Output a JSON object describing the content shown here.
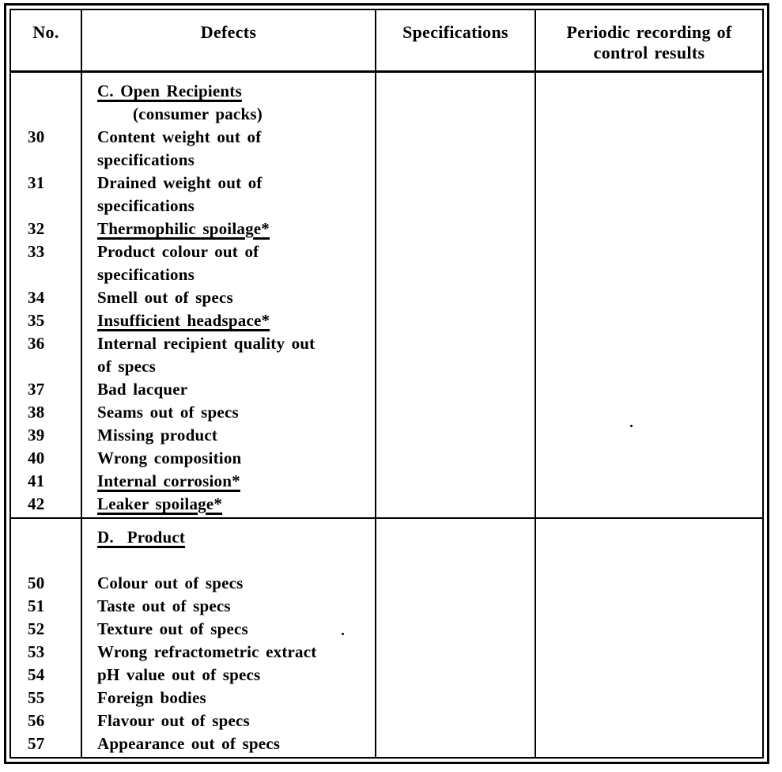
{
  "table": {
    "columns": {
      "no": "No.",
      "defects": "Defects",
      "specifications": "Specifications",
      "periodic": "Periodic recording of control results"
    },
    "sections": [
      {
        "id": "C",
        "lines": [
          {
            "no": "",
            "text": "C. Open Recipients",
            "underline": true
          },
          {
            "no": "",
            "text": "(consumer packs)",
            "indent": true
          },
          {
            "no": "30",
            "text": "Content weight out of"
          },
          {
            "no": "",
            "text": "specifications"
          },
          {
            "no": "31",
            "text": "Drained weight out of"
          },
          {
            "no": "",
            "text": "specifications"
          },
          {
            "no": "32",
            "text": "Thermophilic spoilage*",
            "underline": true
          },
          {
            "no": "33",
            "text": "Product colour out of"
          },
          {
            "no": "",
            "text": "specifications"
          },
          {
            "no": "34",
            "text": "Smell out of specs"
          },
          {
            "no": "35",
            "text": "Insufficient headspace*",
            "underline": true
          },
          {
            "no": "36",
            "text": "Internal recipient quality out"
          },
          {
            "no": "",
            "text": "of specs"
          },
          {
            "no": "37",
            "text": "Bad lacquer"
          },
          {
            "no": "38",
            "text": "Seams out of specs"
          },
          {
            "no": "39",
            "text": "Missing product"
          },
          {
            "no": "40",
            "text": "Wrong composition"
          },
          {
            "no": "41",
            "text": "Internal corrosion*",
            "underline": true
          },
          {
            "no": "42",
            "text": "Leaker spoilage*",
            "underline": true
          }
        ]
      },
      {
        "id": "D",
        "lines": [
          {
            "no": "",
            "text": "D.  Product",
            "underline": true
          },
          {
            "no": "",
            "text": ""
          },
          {
            "no": "50",
            "text": "Colour out of specs"
          },
          {
            "no": "51",
            "text": "Taste out of specs"
          },
          {
            "no": "52",
            "text": "Texture out of specs"
          },
          {
            "no": "53",
            "text": "Wrong refractometric extract"
          },
          {
            "no": "54",
            "text": "pH value out of specs"
          },
          {
            "no": "55",
            "text": "Foreign bodies"
          },
          {
            "no": "56",
            "text": "Flavour out of specs"
          },
          {
            "no": "57",
            "text": "Appearance out of specs"
          }
        ]
      }
    ]
  }
}
